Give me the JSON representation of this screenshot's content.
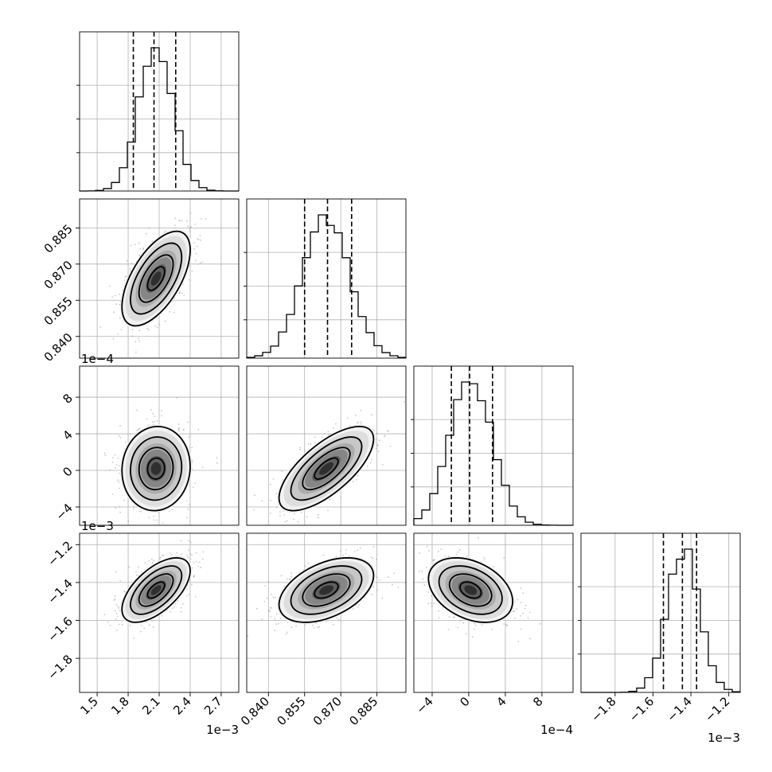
{
  "chart_data": {
    "type": "corner",
    "params": [
      {
        "ticks": [
          1.5,
          1.8,
          2.1,
          2.4,
          2.7
        ],
        "tick_labels": [
          "1.5",
          "1.8",
          "2.1",
          "2.4",
          "2.7"
        ],
        "offset": "1e−3",
        "range": [
          1.33,
          2.87
        ],
        "mean": 2.07,
        "sd": 0.165,
        "quantiles": [
          1.85,
          2.05,
          2.26
        ]
      },
      {
        "ticks": [
          0.84,
          0.855,
          0.87,
          0.885
        ],
        "tick_labels": [
          "0.840",
          "0.855",
          "0.870",
          "0.885"
        ],
        "offset": "",
        "range": [
          0.831,
          0.897
        ],
        "mean": 0.864,
        "sd": 0.0098,
        "quantiles": [
          0.855,
          0.8645,
          0.8745
        ]
      },
      {
        "ticks": [
          -4,
          0,
          4,
          8
        ],
        "tick_labels": [
          "−4",
          "0",
          "4",
          "8"
        ],
        "offset": "1e−4",
        "range": [
          -6.0,
          11.4
        ],
        "mean": 0.2,
        "sd": 2.3,
        "quantiles": [
          -1.9,
          0.1,
          2.6
        ]
      },
      {
        "ticks": [
          -1.8,
          -1.6,
          -1.4,
          -1.2
        ],
        "tick_labels": [
          "−1.8",
          "−1.6",
          "−1.4",
          "−1.2"
        ],
        "offset": "1e−3",
        "range": [
          -1.98,
          -1.14
        ],
        "mean": -1.44,
        "sd": 0.085,
        "quantiles": [
          -1.545,
          -1.445,
          -1.37
        ]
      }
    ],
    "correlations": [
      [
        1.0,
        0.6,
        0.05,
        0.6
      ],
      [
        0.6,
        1.0,
        0.7,
        0.45
      ],
      [
        0.05,
        0.7,
        1.0,
        -0.35
      ],
      [
        0.6,
        0.45,
        -0.35,
        1.0
      ]
    ],
    "grid": true,
    "contour_sigma_levels": [
      0.5,
      1.0,
      1.5,
      2.0
    ]
  }
}
